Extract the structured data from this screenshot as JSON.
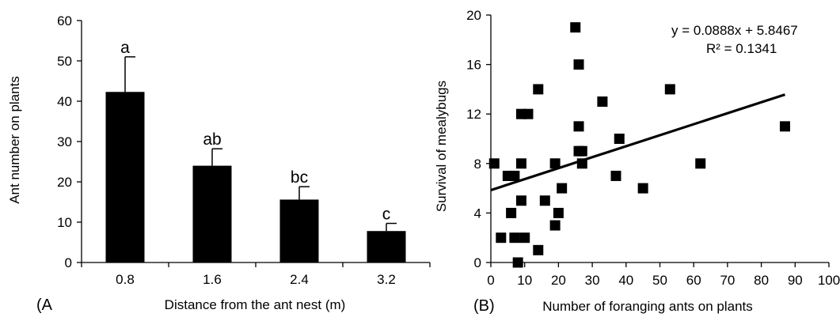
{
  "colors": {
    "bar": "#000000",
    "axis": "#000000",
    "point": "#000000",
    "trendline": "#000000",
    "background": "#ffffff"
  },
  "chart_data": [
    {
      "type": "bar",
      "panel_label": "(A",
      "categories": [
        "0.8",
        "1.6",
        "2.4",
        "3.2"
      ],
      "values": [
        42.3,
        24.0,
        15.6,
        7.8
      ],
      "error_upper": [
        51.0,
        28.2,
        18.8,
        9.7
      ],
      "significance_letters": [
        "a",
        "ab",
        "bc",
        "c"
      ],
      "xlabel": "Distance from the ant nest (m)",
      "ylabel": "Ant number on plants",
      "ylim": [
        0,
        60
      ],
      "yticks": [
        "0",
        "10",
        "20",
        "30",
        "40",
        "50",
        "60"
      ],
      "grid": false,
      "legend": "none"
    },
    {
      "type": "scatter",
      "panel_label": "(B)",
      "xlabel": "Number of foranging ants on plants",
      "ylabel": "Survival of mealybugs",
      "xlim": [
        0,
        100
      ],
      "ylim": [
        0,
        20
      ],
      "xticks": [
        "0",
        "10",
        "20",
        "30",
        "40",
        "50",
        "60",
        "70",
        "80",
        "90",
        "100"
      ],
      "yticks": [
        "0",
        "4",
        "8",
        "12",
        "16",
        "20"
      ],
      "points": [
        {
          "x": 1,
          "y": 8
        },
        {
          "x": 3,
          "y": 2
        },
        {
          "x": 5,
          "y": 7
        },
        {
          "x": 6,
          "y": 4
        },
        {
          "x": 7,
          "y": 7
        },
        {
          "x": 7,
          "y": 2
        },
        {
          "x": 8,
          "y": 0
        },
        {
          "x": 9,
          "y": 8
        },
        {
          "x": 9,
          "y": 5
        },
        {
          "x": 9,
          "y": 12
        },
        {
          "x": 10,
          "y": 2
        },
        {
          "x": 11,
          "y": 12
        },
        {
          "x": 14,
          "y": 14
        },
        {
          "x": 14,
          "y": 1
        },
        {
          "x": 16,
          "y": 5
        },
        {
          "x": 19,
          "y": 8
        },
        {
          "x": 19,
          "y": 3
        },
        {
          "x": 20,
          "y": 4
        },
        {
          "x": 21,
          "y": 6
        },
        {
          "x": 25,
          "y": 19
        },
        {
          "x": 26,
          "y": 16
        },
        {
          "x": 26,
          "y": 11
        },
        {
          "x": 26,
          "y": 9
        },
        {
          "x": 27,
          "y": 9
        },
        {
          "x": 27,
          "y": 8
        },
        {
          "x": 33,
          "y": 13
        },
        {
          "x": 37,
          "y": 7
        },
        {
          "x": 38,
          "y": 10
        },
        {
          "x": 45,
          "y": 6
        },
        {
          "x": 53,
          "y": 14
        },
        {
          "x": 62,
          "y": 8
        },
        {
          "x": 87,
          "y": 11
        }
      ],
      "trendline": {
        "slope": 0.0888,
        "intercept": 5.8467,
        "x_range": [
          0,
          87
        ]
      },
      "equation": "y = 0.0888x + 5.8467",
      "r_squared": "R² = 0.1341",
      "grid": false,
      "legend": "none"
    }
  ]
}
